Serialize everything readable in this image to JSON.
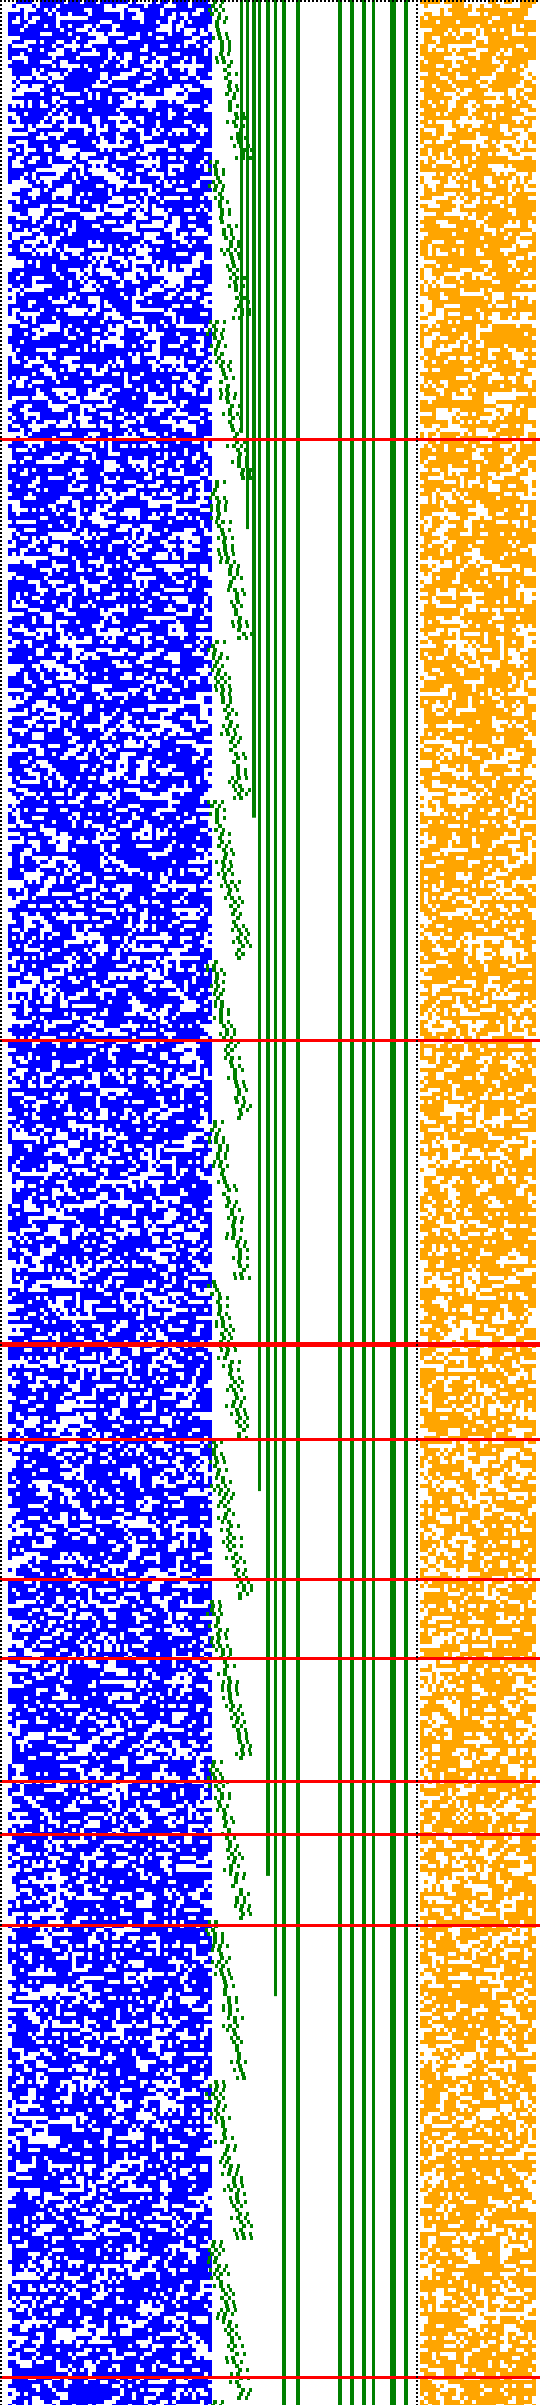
{
  "colors": {
    "background": "#ffffff",
    "left_pixels": "#0000ff",
    "boundary_pixels": "#008000",
    "right_pixels": "#ffa500",
    "highlight_rows": "#ff0000",
    "separator_dots": "#000000"
  },
  "regions": [
    {
      "name": "blue-random-field",
      "color_key": "left_pixels"
    },
    {
      "name": "green-staircase",
      "color_key": "boundary_pixels"
    },
    {
      "name": "green-vertical-bars",
      "color_key": "boundary_pixels"
    },
    {
      "name": "orange-random-field",
      "color_key": "right_pixels"
    }
  ],
  "highlight_row_fractions": [
    0.182,
    0.432,
    0.558,
    0.559,
    0.598,
    0.656,
    0.689,
    0.74,
    0.762,
    0.8,
    0.988
  ]
}
